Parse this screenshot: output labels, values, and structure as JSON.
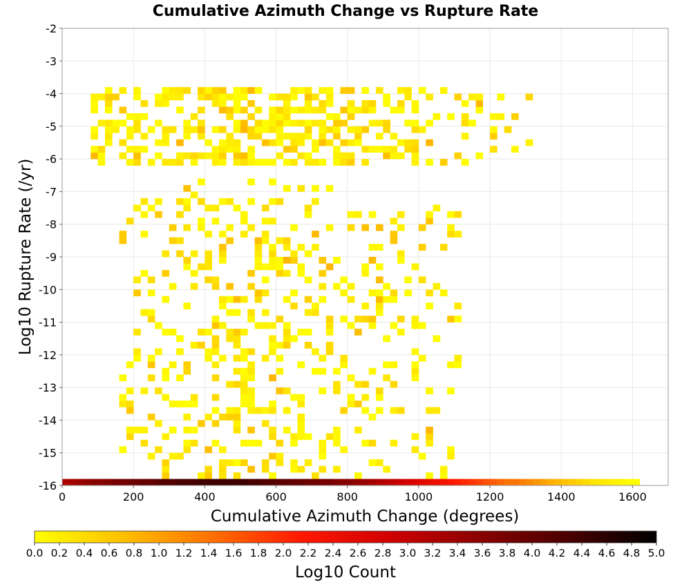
{
  "chart_data": {
    "type": "heatmap",
    "title": "Cumulative Azimuth Change vs Rupture Rate",
    "xlabel": "Cumulative Azimuth Change (degrees)",
    "ylabel": "Log10 Rupture Rate (/yr)",
    "xlim": [
      0,
      1700
    ],
    "ylim": [
      -16,
      -2
    ],
    "x_ticks": [
      "0",
      "200",
      "400",
      "600",
      "800",
      "1000",
      "1200",
      "1400",
      "1600"
    ],
    "y_ticks": [
      "-2",
      "-3",
      "-4",
      "-5",
      "-6",
      "-7",
      "-8",
      "-9",
      "-10",
      "-11",
      "-12",
      "-13",
      "-14",
      "-15",
      "-16"
    ],
    "grid": true,
    "bin_width_x": 20,
    "bin_height_y": 0.2,
    "cell_value": "log10 count",
    "colorbar": {
      "label": "Log10 Count",
      "min": 0,
      "max": 5,
      "ticks": [
        "0.0",
        "0.2",
        "0.4",
        "0.6",
        "0.8",
        "1.0",
        "1.2",
        "1.4",
        "1.6",
        "1.8",
        "2.0",
        "2.2",
        "2.4",
        "2.6",
        "2.8",
        "3.0",
        "3.2",
        "3.4",
        "3.6",
        "3.8",
        "4.0",
        "4.2",
        "4.4",
        "4.6",
        "4.8",
        "5.0"
      ],
      "colors": [
        "#ffff00",
        "#ffc000",
        "#ff7000",
        "#ff1800",
        "#d00000",
        "#8a0000",
        "#4a0000",
        "#000000"
      ]
    },
    "bottom_row": {
      "y": -16,
      "x": [
        0,
        20,
        40,
        60,
        80,
        100,
        120,
        140,
        160,
        180,
        200,
        220,
        240,
        260,
        280,
        300,
        320,
        340,
        360,
        380,
        400,
        420,
        440,
        460,
        480,
        500,
        520,
        540,
        560,
        580,
        600,
        620,
        640,
        660,
        680,
        700,
        720,
        740,
        760,
        780,
        800,
        820,
        840,
        860,
        880,
        900,
        920,
        940,
        960,
        980,
        1000,
        1020,
        1040,
        1060,
        1080,
        1100,
        1120,
        1140,
        1160,
        1180,
        1200,
        1220,
        1240,
        1260,
        1280,
        1300,
        1320,
        1340,
        1360,
        1380,
        1400,
        1420,
        1440,
        1460,
        1480,
        1500,
        1520,
        1540,
        1560,
        1580,
        1600
      ],
      "values": [
        3.2,
        3.3,
        3.4,
        3.5,
        3.6,
        3.6,
        3.7,
        3.8,
        3.8,
        3.9,
        3.9,
        4.0,
        4.0,
        4.1,
        4.2,
        4.2,
        4.3,
        4.3,
        4.3,
        4.4,
        4.4,
        4.4,
        4.4,
        4.4,
        4.4,
        4.4,
        4.3,
        4.3,
        4.2,
        4.2,
        4.1,
        4.1,
        4.0,
        4.0,
        3.9,
        3.9,
        3.8,
        3.8,
        3.7,
        3.6,
        3.6,
        3.5,
        3.4,
        3.3,
        3.2,
        3.1,
        3.0,
        2.9,
        2.8,
        2.7,
        2.6,
        2.5,
        2.4,
        2.3,
        2.2,
        2.1,
        2.0,
        1.9,
        1.8,
        1.7,
        1.6,
        1.5,
        1.4,
        1.4,
        1.3,
        1.2,
        1.1,
        1.0,
        0.9,
        0.8,
        0.7,
        0.6,
        0.5,
        0.4,
        0.3,
        0.25,
        0.2,
        0.15,
        0.1,
        0.05,
        0.0
      ]
    },
    "scatter_region": {
      "y_range": [
        -15.8,
        -4.0
      ],
      "x_range": [
        0,
        1340
      ],
      "typical_value_range": [
        0.0,
        0.8
      ]
    }
  }
}
